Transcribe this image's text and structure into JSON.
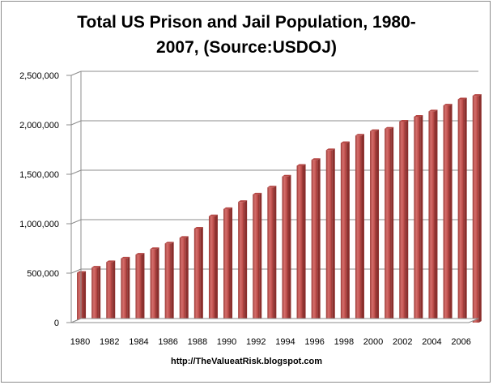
{
  "chart_data": {
    "type": "bar",
    "title_lines": [
      "Total US Prison and Jail Population, 1980-",
      "2007, (Source:USDOJ)"
    ],
    "source_label": "http://TheValueatRisk.blogspot.com",
    "xlabel": "",
    "ylabel": "",
    "ylim": [
      0,
      2500000
    ],
    "y_ticks": [
      0,
      500000,
      1000000,
      1500000,
      2000000,
      2500000
    ],
    "y_tick_labels": [
      "0",
      "500,000",
      "1,000,000",
      "1,500,000",
      "2,000,000",
      "2,500,000"
    ],
    "grid": true,
    "legend": "none",
    "categories": [
      "1980",
      "1981",
      "1982",
      "1983",
      "1984",
      "1985",
      "1986",
      "1987",
      "1988",
      "1989",
      "1990",
      "1991",
      "1992",
      "1993",
      "1994",
      "1995",
      "1996",
      "1997",
      "1998",
      "1999",
      "2000",
      "2001",
      "2002",
      "2003",
      "2004",
      "2005",
      "2006",
      "2007"
    ],
    "x_tick_labels": [
      "1980",
      "1982",
      "1984",
      "1986",
      "1988",
      "1990",
      "1992",
      "1994",
      "1996",
      "1998",
      "2000",
      "2002",
      "2004",
      "2006"
    ],
    "values": [
      504000,
      556000,
      612000,
      649000,
      688000,
      744000,
      800000,
      858000,
      951000,
      1076000,
      1149000,
      1220000,
      1296000,
      1367000,
      1477000,
      1586000,
      1646000,
      1744000,
      1816000,
      1891000,
      1937000,
      1961000,
      2033000,
      2082000,
      2136000,
      2196000,
      2258000,
      2294000
    ],
    "colors": {
      "bar_face": "#c0504d",
      "bar_highlight": "#d98280",
      "bar_shadow": "#8b2e2c",
      "bar_top": "#b54744",
      "gridline": "#8c8c8c",
      "axis": "#8c8c8c"
    }
  }
}
